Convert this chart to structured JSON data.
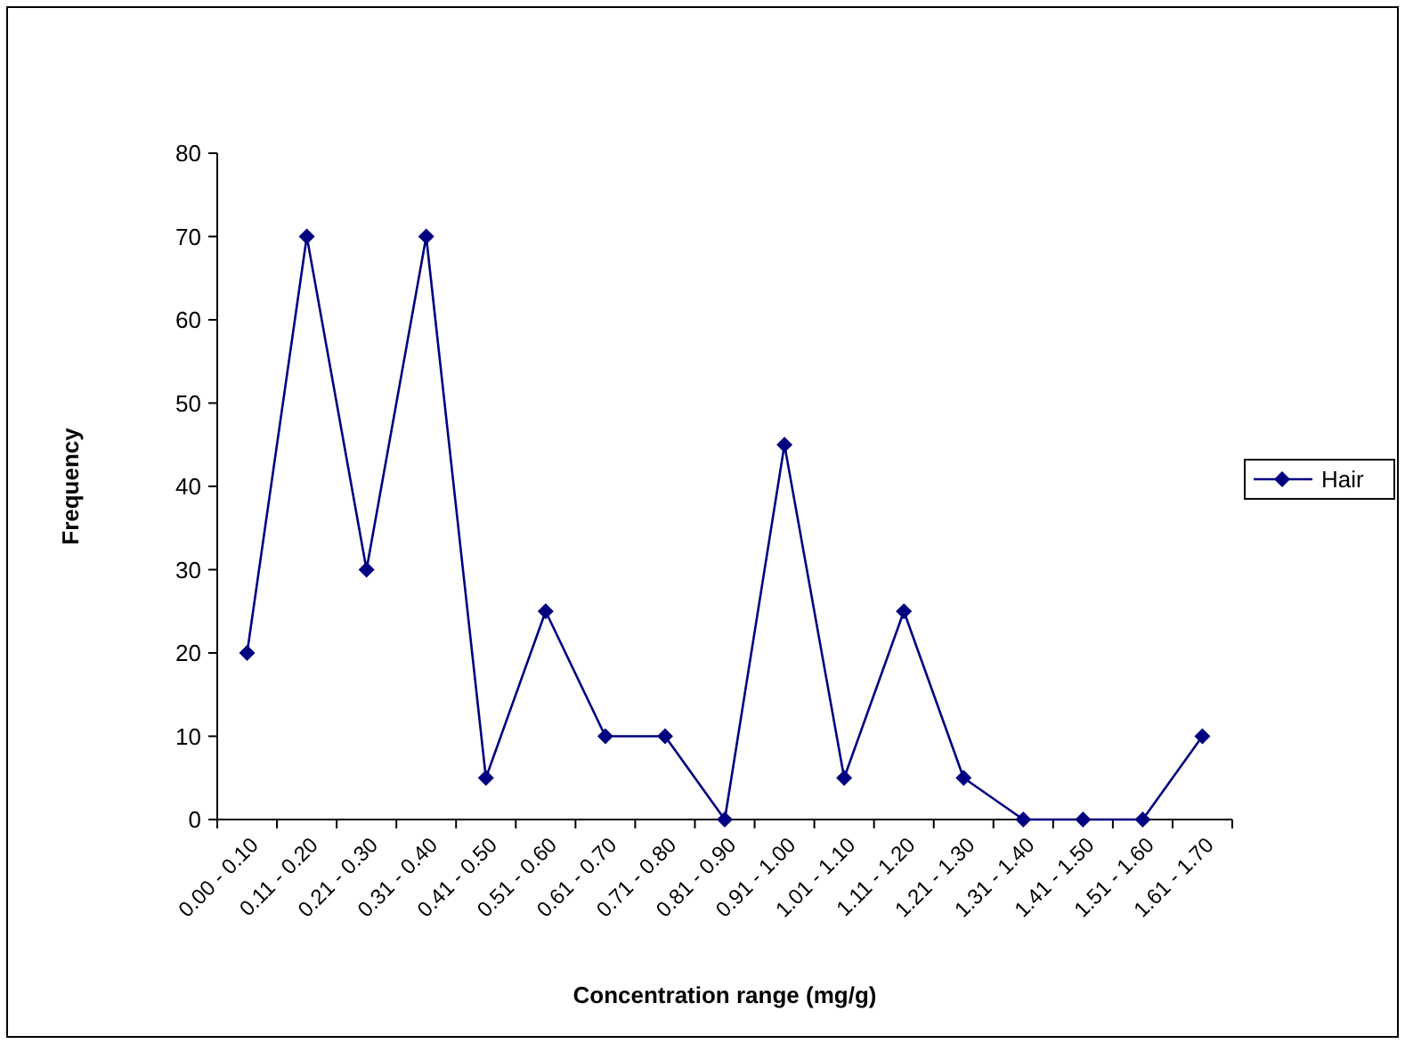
{
  "chart_data": {
    "type": "line",
    "xlabel": "Concentration range (mg/g)",
    "ylabel": "Frequency",
    "categories": [
      "0.00 - 0.10",
      "0.11 - 0.20",
      "0.21 - 0.30",
      "0.31 - 0.40",
      "0.41 - 0.50",
      "0.51 - 0.60",
      "0.61 - 0.70",
      "0.71 - 0.80",
      "0.81 - 0.90",
      "0.91 - 1.00",
      "1.01 - 1.10",
      "1.11 - 1.20",
      "1.21 - 1.30",
      "1.31 - 1.40",
      "1.41 - 1.50",
      "1.51 - 1.60",
      "1.61 - 1.70"
    ],
    "series": [
      {
        "name": "Hair",
        "color": "#000080",
        "values": [
          20,
          70,
          30,
          70,
          5,
          25,
          10,
          10,
          0,
          45,
          5,
          25,
          5,
          0,
          0,
          0,
          10
        ]
      }
    ],
    "ylim": [
      0,
      80
    ],
    "yticks": [
      0,
      10,
      20,
      30,
      40,
      50,
      60,
      70,
      80
    ],
    "legend": "right",
    "marker": "diamond",
    "line_style": "solid",
    "grid": false
  }
}
